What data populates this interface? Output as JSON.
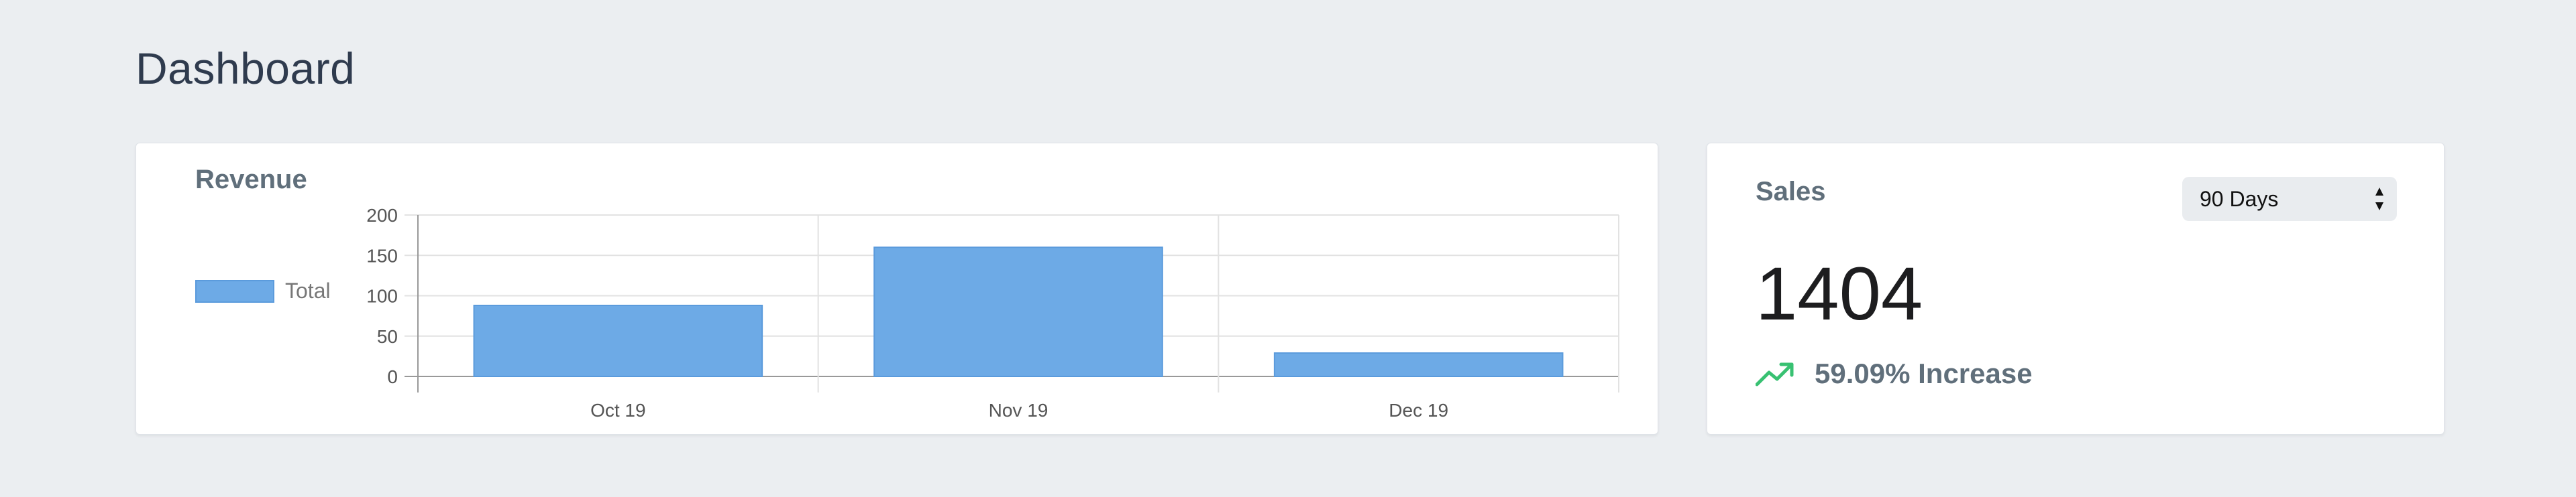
{
  "header": {
    "title": "Dashboard"
  },
  "revenue": {
    "title": "Revenue",
    "legend_label": "Total"
  },
  "sales": {
    "title": "Sales",
    "range_selected": "90 Days",
    "value": "1404",
    "change_text": "59.09% Increase",
    "trend_icon": "trending-up-icon"
  },
  "colors": {
    "bar": "#6daae6",
    "trend": "#38c172"
  },
  "chart_data": {
    "type": "bar",
    "categories": [
      "Oct 19",
      "Nov 19",
      "Dec 19"
    ],
    "series": [
      {
        "name": "Total",
        "values": [
          88,
          160,
          29
        ]
      }
    ],
    "yticks": [
      0,
      50,
      100,
      150,
      200
    ],
    "ylim": [
      0,
      200
    ],
    "grid": true,
    "legend_position": "left"
  }
}
